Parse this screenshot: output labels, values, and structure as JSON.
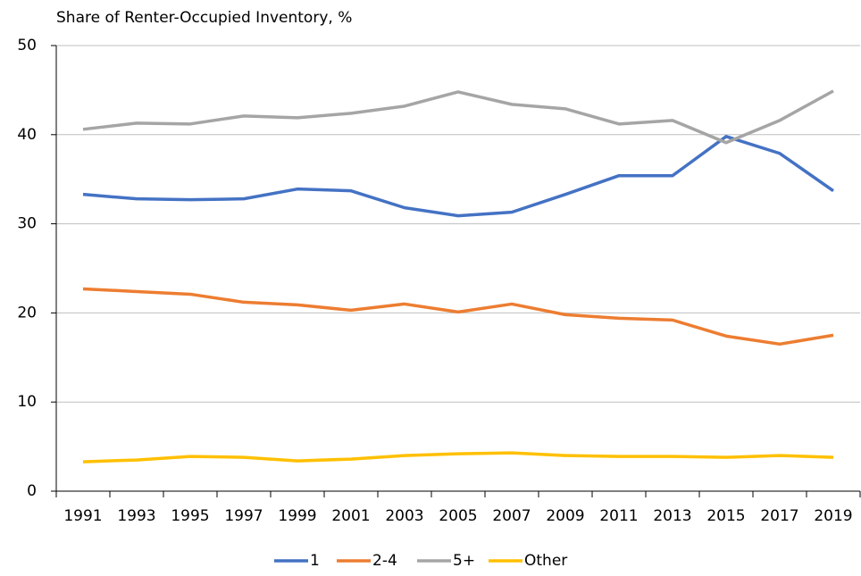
{
  "chart_data": {
    "type": "line",
    "title": "Share of Renter-Occupied Inventory, %",
    "categories": [
      "1991",
      "1993",
      "1995",
      "1997",
      "1999",
      "2001",
      "2003",
      "2005",
      "2007",
      "2009",
      "2011",
      "2013",
      "2015",
      "2017",
      "2019"
    ],
    "series": [
      {
        "name": "1",
        "color": "#4472c4",
        "values": [
          33.3,
          32.8,
          32.7,
          32.8,
          33.9,
          33.7,
          31.8,
          30.9,
          31.3,
          33.3,
          35.4,
          35.4,
          39.8,
          37.9,
          33.7
        ]
      },
      {
        "name": "2-4",
        "color": "#ed7d31",
        "values": [
          22.7,
          22.4,
          22.1,
          21.2,
          20.9,
          20.3,
          21.0,
          20.1,
          21.0,
          19.8,
          19.4,
          19.2,
          17.4,
          16.5,
          17.5
        ]
      },
      {
        "name": "5+",
        "color": "#a5a5a5",
        "values": [
          40.6,
          41.3,
          41.2,
          42.1,
          41.9,
          42.4,
          43.2,
          44.8,
          43.4,
          42.9,
          41.2,
          41.6,
          39.1,
          41.6,
          44.9
        ]
      },
      {
        "name": "Other",
        "color": "#ffc000",
        "values": [
          3.3,
          3.5,
          3.9,
          3.8,
          3.4,
          3.6,
          4.0,
          4.2,
          4.3,
          4.0,
          3.9,
          3.9,
          3.8,
          4.0,
          3.8
        ]
      }
    ],
    "ylim": [
      0,
      50
    ],
    "yticks": [
      0,
      10,
      20,
      30,
      40,
      50
    ],
    "grid": true,
    "legend": "bottom"
  }
}
